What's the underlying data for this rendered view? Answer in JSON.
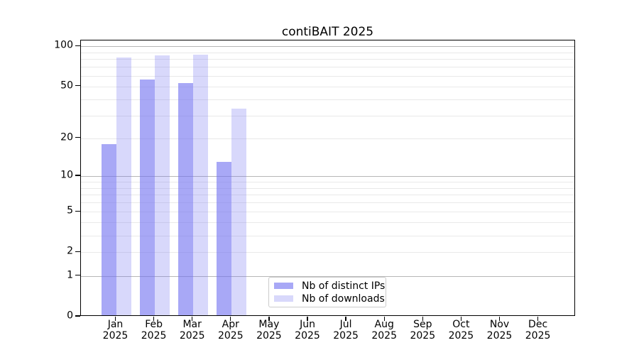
{
  "chart_data": {
    "type": "bar",
    "title": "contiBAIT 2025",
    "categories": [
      "Jan",
      "Feb",
      "Mar",
      "Apr",
      "May",
      "Jun",
      "Jul",
      "Aug",
      "Sep",
      "Oct",
      "Nov",
      "Dec"
    ],
    "x_tick_year": "2025",
    "series": [
      {
        "name": "Nb of distinct IPs",
        "color": "rgba(115,115,240,0.62)",
        "values": [
          18,
          56,
          53,
          13,
          null,
          null,
          null,
          null,
          null,
          null,
          null,
          null
        ]
      },
      {
        "name": "Nb of downloads",
        "color": "rgba(115,115,240,0.28)",
        "values": [
          82,
          85,
          86,
          34,
          null,
          null,
          null,
          null,
          null,
          null,
          null,
          null
        ]
      }
    ],
    "y_ticks": [
      0,
      1,
      2,
      5,
      10,
      20,
      50,
      100
    ],
    "y_scale": "log10(1+y)",
    "ylim": [
      0,
      110
    ],
    "grid": {
      "minor_values": [
        2,
        3,
        4,
        5,
        6,
        7,
        8,
        9,
        20,
        30,
        40,
        50,
        60,
        70,
        80,
        90
      ],
      "major_values": [
        1,
        10,
        100
      ]
    },
    "legend": {
      "position": "lower center"
    }
  },
  "style": {
    "grid_minor_color": "#e9e9e9",
    "grid_major_color": "#b6b6b6",
    "axis_color": "#000000",
    "background_color": "#ffffff",
    "bar_base_color": "#7373f0"
  }
}
